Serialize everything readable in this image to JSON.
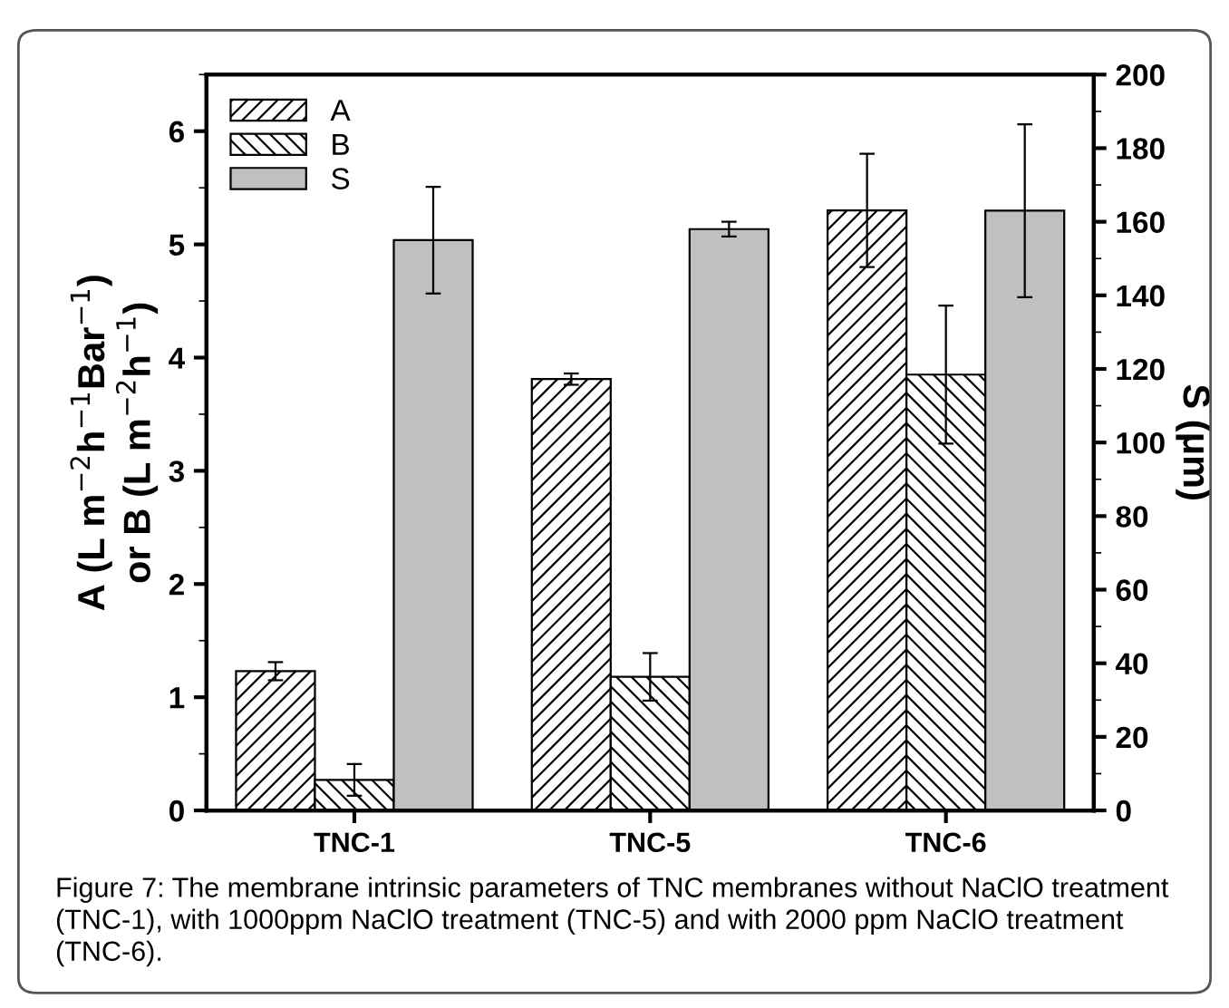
{
  "chart_data": {
    "type": "bar",
    "categories": [
      "TNC-1",
      "TNC-5",
      "TNC-6"
    ],
    "ylabel": "A (L m$^{−2}$h$^{−1}$Bar$^{−1}$)\nor B (L m$^{−2}$h$^{−1}$)",
    "y2label": "S (μm)",
    "ylim": [
      0,
      6.5
    ],
    "yticks": [
      0,
      1,
      2,
      3,
      4,
      5,
      6
    ],
    "y2lim": [
      0,
      200
    ],
    "y2ticks": [
      0,
      20,
      40,
      60,
      80,
      100,
      120,
      140,
      160,
      180,
      200
    ],
    "legend": "top left",
    "grid": false,
    "series": [
      {
        "name": "A",
        "color": "#000000",
        "values": [
          1.23,
          3.81,
          5.3
        ],
        "errors": [
          0.08,
          0.05,
          0.5
        ]
      },
      {
        "name": "B",
        "color": "#000000",
        "values": [
          0.27,
          1.18,
          3.85
        ],
        "errors": [
          0.14,
          0.21,
          0.61
        ]
      },
      {
        "name": "S",
        "color": "#c0c0c0",
        "axis": "y2",
        "values": [
          155,
          158,
          163
        ],
        "errors": [
          14.5,
          2,
          23.5
        ]
      }
    ],
    "annotations": [
      "Figure 7: The membrane intrinsic parameters of TNC membranes without NaClO treatment (TNC-1), with 1000ppm NaClO treatment (TNC-5) and with 2000 ppm NaClO treatment (TNC-6)."
    ]
  }
}
